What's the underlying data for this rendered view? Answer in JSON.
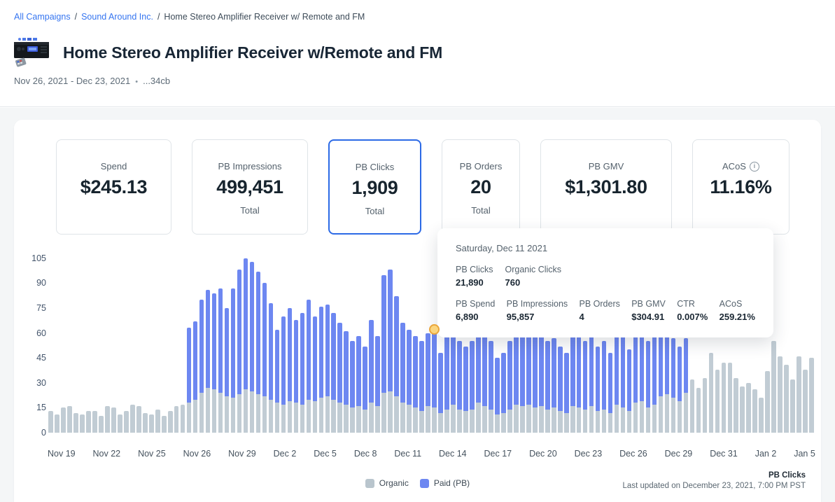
{
  "breadcrumb": {
    "separator": "/",
    "items": [
      {
        "label": "All Campaigns",
        "link": true
      },
      {
        "label": "Sound Around Inc.",
        "link": true
      },
      {
        "label": "Home Stereo Amplifier Receiver w/ Remote and FM",
        "link": false
      }
    ]
  },
  "header": {
    "title": "Home Stereo Amplifier Receiver w/Remote and FM",
    "date_range": "Nov 26, 2021 - Dec 23, 2021",
    "bullet": "•",
    "campaign_id": "...34cb",
    "product_image": "stereo-amplifier-photo"
  },
  "metric_cards": [
    {
      "label": "Spend",
      "value": "$245.13",
      "sublabel": "",
      "selected": false,
      "info_icon": false
    },
    {
      "label": "PB Impressions",
      "value": "499,451",
      "sublabel": "Total",
      "selected": false,
      "info_icon": false
    },
    {
      "label": "PB Clicks",
      "value": "1,909",
      "sublabel": "Total",
      "selected": true,
      "info_icon": false
    },
    {
      "label": "PB Orders",
      "value": "20",
      "sublabel": "Total",
      "selected": false,
      "info_icon": false
    },
    {
      "label": "PB GMV",
      "value": "$1,301.80",
      "sublabel": "",
      "selected": false,
      "info_icon": false
    },
    {
      "label": "ACoS",
      "value": "11.16%",
      "sublabel": "",
      "selected": false,
      "info_icon": true
    }
  ],
  "tooltip": {
    "date": "Saturday, Dec 11 2021",
    "row1": [
      {
        "label": "PB Clicks",
        "value": "21,890"
      },
      {
        "label": "Organic Clicks",
        "value": "760"
      }
    ],
    "row2": [
      {
        "label": "PB Spend",
        "value": "6,890"
      },
      {
        "label": "PB Impressions",
        "value": "95,857"
      },
      {
        "label": "PB Orders",
        "value": "4"
      },
      {
        "label": "PB GMV",
        "value": "$304.91"
      },
      {
        "label": "CTR",
        "value": "0.007%"
      },
      {
        "label": "ACoS",
        "value": "259.21%"
      }
    ]
  },
  "chart_data": {
    "type": "bar",
    "stacked": true,
    "ylim": [
      0,
      112.5
    ],
    "y_ticks": [
      105,
      90,
      75,
      60,
      45,
      30,
      15,
      0
    ],
    "grid": false,
    "legend_position": "bottom",
    "x_labels": [
      "Nov 19",
      "Nov 22",
      "Nov 25",
      "Nov 26",
      "Nov 29",
      "Dec 2",
      "Dec 5",
      "Dec 8",
      "Dec 11",
      "Dec 14",
      "Dec 17",
      "Dec 20",
      "Dec 23",
      "Dec 26",
      "Dec 29",
      "Dec 31",
      "Jan 2",
      "Jan 5"
    ],
    "series": [
      {
        "name": "Organic",
        "color": "#c1ccd4",
        "values": [
          13,
          11,
          15,
          16,
          12,
          11,
          13,
          13,
          10,
          16,
          15,
          11,
          13,
          17,
          16,
          12,
          11,
          14,
          10,
          13,
          16,
          17,
          18,
          20,
          24,
          27,
          26,
          24,
          22,
          21,
          23,
          26,
          25,
          23,
          22,
          20,
          18,
          17,
          19,
          18,
          17,
          20,
          19,
          21,
          22,
          20,
          18,
          17,
          15,
          16,
          14,
          18,
          16,
          24,
          25,
          22,
          18,
          17,
          15,
          13,
          16,
          15,
          12,
          14,
          17,
          14,
          13,
          14,
          18,
          16,
          14,
          11,
          12,
          14,
          17,
          16,
          17,
          15,
          16,
          14,
          15,
          13,
          12,
          16,
          15,
          14,
          16,
          13,
          14,
          12,
          17,
          15,
          13,
          18,
          19,
          15,
          17,
          22,
          23,
          21,
          19,
          24,
          32,
          27,
          33,
          48,
          38,
          42,
          42,
          33,
          28,
          30,
          26,
          21,
          37,
          55,
          46,
          41,
          32,
          46,
          38,
          45
        ]
      },
      {
        "name": "Paid (PB)",
        "color": "#6d87f1",
        "values": [
          0,
          0,
          0,
          0,
          0,
          0,
          0,
          0,
          0,
          0,
          0,
          0,
          0,
          0,
          0,
          0,
          0,
          0,
          0,
          0,
          0,
          0,
          45,
          47,
          56,
          59,
          58,
          63,
          53,
          66,
          75,
          79,
          78,
          74,
          68,
          58,
          44,
          53,
          56,
          50,
          55,
          60,
          51,
          55,
          55,
          52,
          48,
          44,
          40,
          42,
          38,
          50,
          42,
          71,
          73,
          60,
          48,
          45,
          43,
          42,
          44,
          47,
          36,
          44,
          48,
          41,
          39,
          41,
          50,
          46,
          41,
          34,
          36,
          41,
          48,
          47,
          48,
          43,
          44,
          41,
          42,
          39,
          36,
          44,
          43,
          41,
          44,
          39,
          41,
          36,
          45,
          43,
          37,
          47,
          47,
          40,
          45,
          56,
          37,
          36,
          33,
          33,
          0,
          0,
          0,
          0,
          0,
          0,
          0,
          0,
          0,
          0,
          0,
          0,
          0,
          0,
          0,
          0,
          0,
          0,
          0,
          0
        ]
      }
    ],
    "highlight": {
      "index": 61,
      "marker_fill": "#fbd57e",
      "marker_stroke": "#eaa63b"
    }
  },
  "legend": [
    {
      "label": "Organic",
      "color": "#b9c5cd"
    },
    {
      "label": "Paid (PB)",
      "color": "#6d87f1"
    }
  ],
  "footer": {
    "metric": "PB Clicks",
    "last_updated": "Last updated on December 23, 2021, 7:00 PM PST"
  }
}
